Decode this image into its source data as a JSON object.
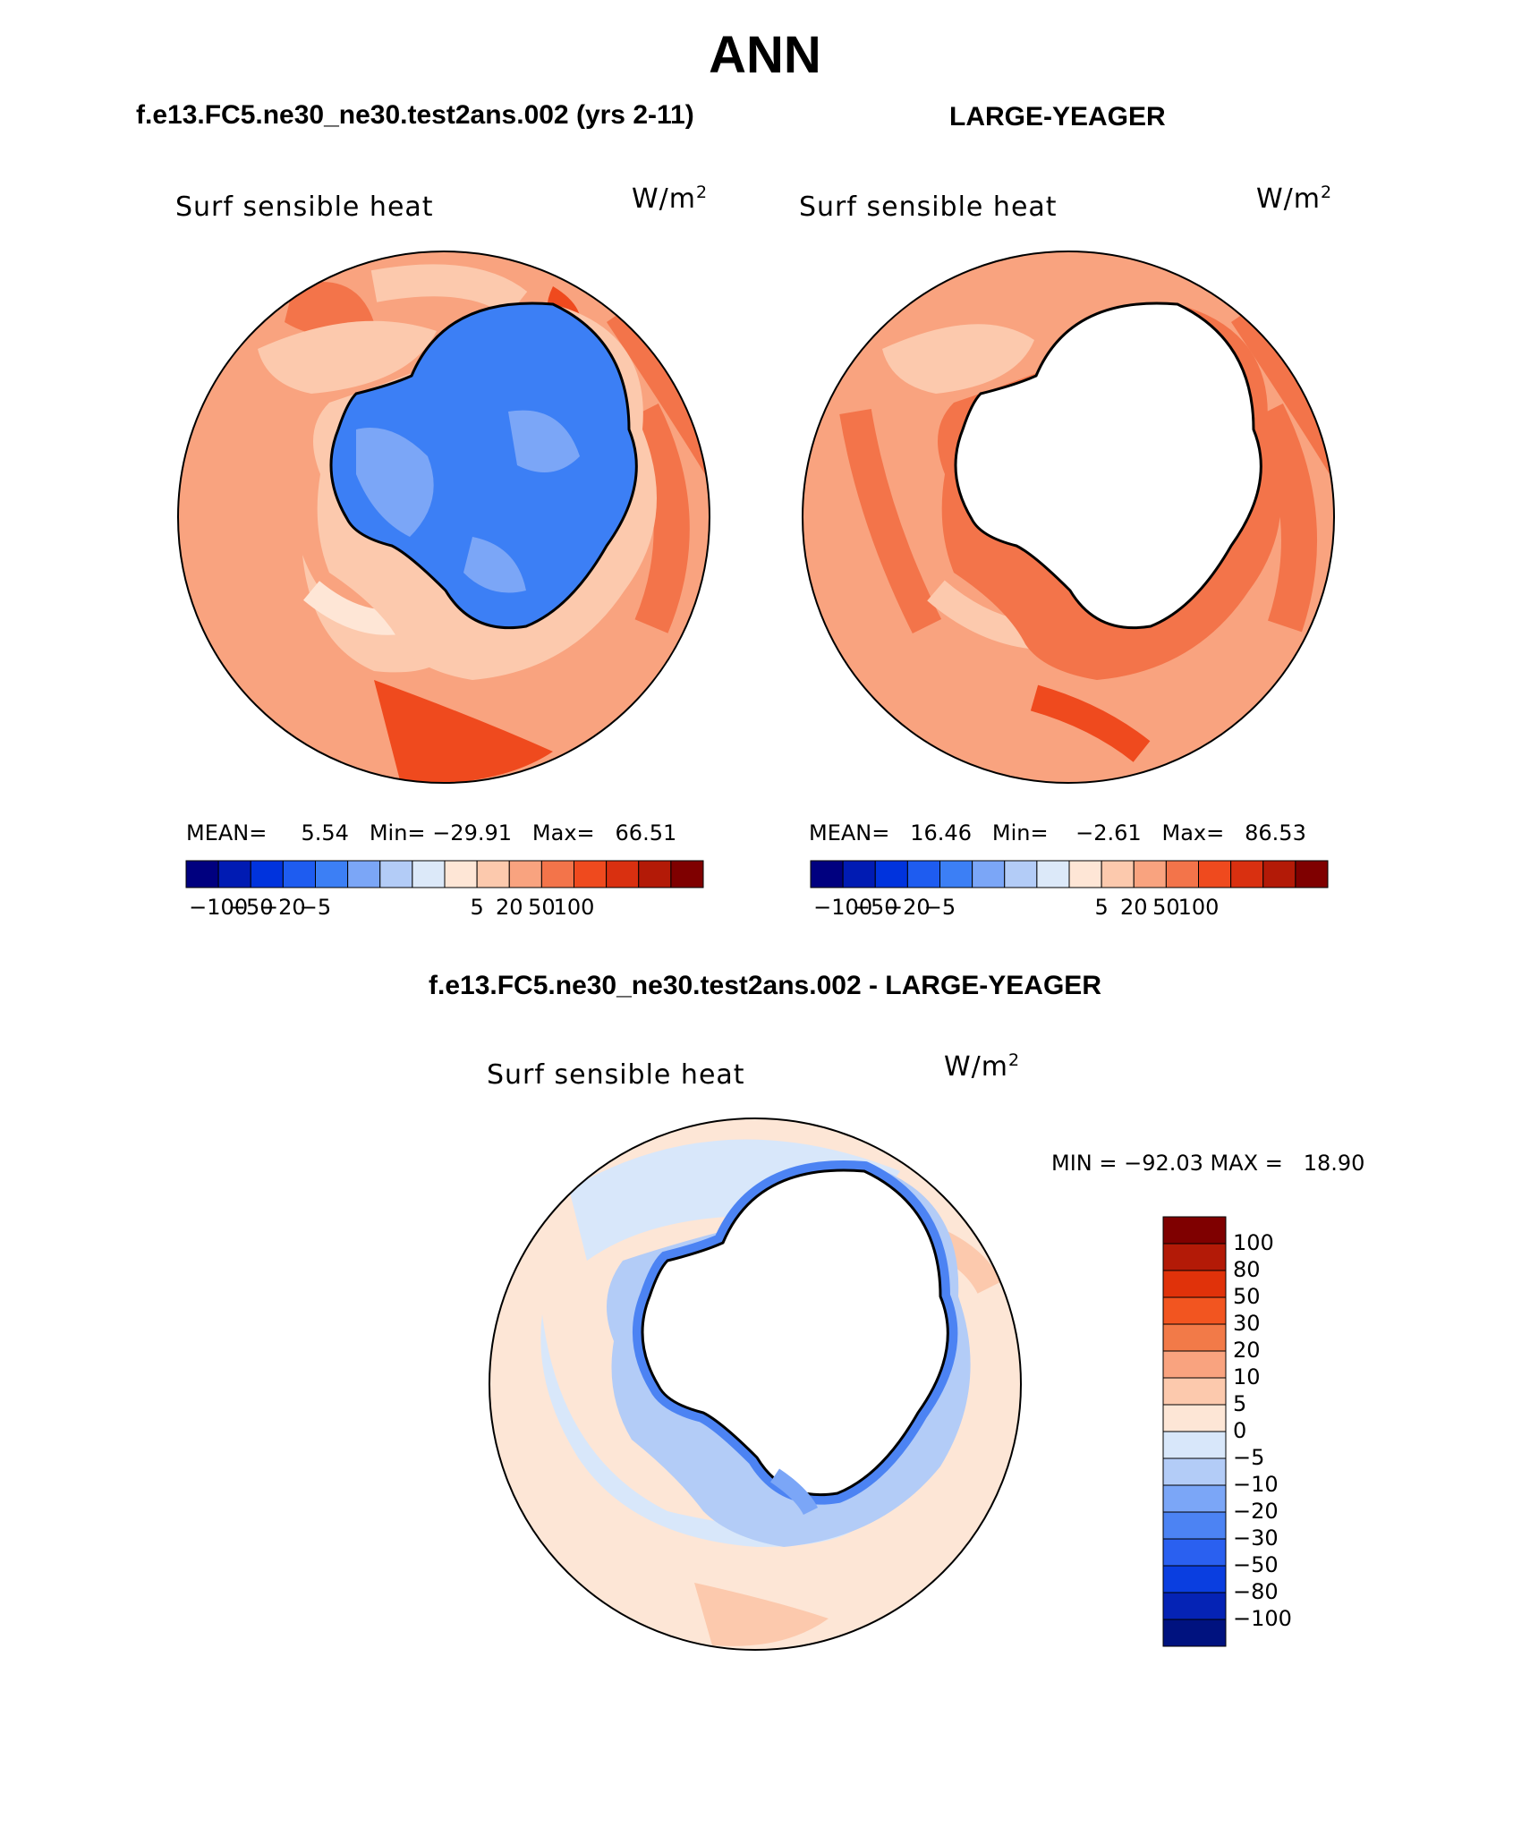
{
  "season": "ANN",
  "panels": {
    "left": {
      "case": "f.e13.FC5.ne30_ne30.test2ans.002 (yrs 2-11)",
      "variable": "Surf sensible heat",
      "units_base": "W/m",
      "units_exp": "2",
      "stats": {
        "mean_label": "MEAN=",
        "mean": "5.54",
        "min_label": "Min=",
        "min": "−29.91",
        "max_label": "Max=",
        "max": "66.51"
      }
    },
    "right": {
      "case": "LARGE-YEAGER",
      "variable": "Surf sensible heat",
      "units_base": "W/m",
      "units_exp": "2",
      "stats": {
        "mean_label": "MEAN=",
        "mean": "16.46",
        "min_label": "Min=",
        "min": "−2.61",
        "max_label": "Max=",
        "max": "86.53"
      }
    },
    "diff": {
      "title": "f.e13.FC5.ne30_ne30.test2ans.002 - LARGE-YEAGER",
      "variable": "Surf sensible heat",
      "units_base": "W/m",
      "units_exp": "2",
      "stats": "MIN = −92.03 MAX =   18.90"
    }
  },
  "colorbar_top": {
    "colors": [
      "#00007f",
      "#001bb3",
      "#0033dd",
      "#1e5cf0",
      "#3c7ff5",
      "#7ba6f7",
      "#b3ccf7",
      "#dce9f9",
      "#fee6d6",
      "#fcc9ad",
      "#f9a37f",
      "#f3744a",
      "#ef4a1e",
      "#d93010",
      "#b31a07",
      "#7f0000"
    ],
    "labels": [
      "−100",
      "−50",
      "−20",
      "−5",
      "5",
      "20",
      "50",
      "100"
    ]
  },
  "colorbar_diff": {
    "colors": [
      "#7f0000",
      "#b31a07",
      "#e0320a",
      "#f25520",
      "#f27a48",
      "#f9a37f",
      "#fcc9ad",
      "#fde6d6",
      "#d8e7fa",
      "#b3ccf7",
      "#7ba6f7",
      "#4c83f3",
      "#2a60f0",
      "#0a3ee0",
      "#0523b5",
      "#00127f"
    ],
    "labels": [
      "100",
      "80",
      "50",
      "30",
      "20",
      "10",
      "5",
      "0",
      "−5",
      "−10",
      "−20",
      "−30",
      "−50",
      "−80",
      "−100"
    ]
  },
  "map_colors": {
    "ocean_warm": "#f9a37f",
    "ocean_warmer": "#f3744a",
    "ocean_hot": "#ef4a1e",
    "ocean_light": "#fcc9ad",
    "ocean_pale": "#fee6d6",
    "land_cold": "#3c7ff5",
    "land_cool": "#7ba6f7",
    "diff_base": "#fde6d6",
    "diff_blue_light": "#d8e7fa",
    "diff_blue_mid": "#b3ccf7",
    "diff_blue": "#7ba6f7",
    "diff_blue_dark": "#4c83f3",
    "diff_pink": "#fcc9ad"
  }
}
